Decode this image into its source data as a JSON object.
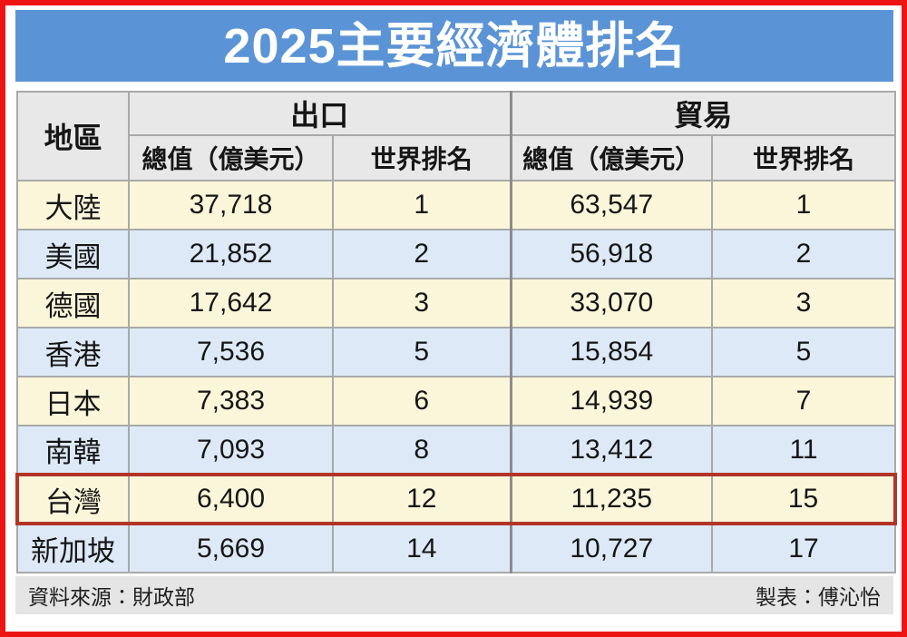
{
  "page": {
    "title": "2025主要經濟體排名"
  },
  "colors": {
    "frame_red": "#ee1414",
    "title_blue": "#5b94d6",
    "header_gray": "#e8e8e8",
    "row_cream": "#fbf6da",
    "row_blue": "#dde9f6",
    "grid_gray": "#a9a9a9",
    "divider_gray": "#8c8c8c",
    "highlight_red": "#b23527",
    "footer_gray": "#e5e5e5"
  },
  "table": {
    "region_header": "地區",
    "group_headers": [
      "出口",
      "貿易"
    ],
    "sub_headers": [
      "總值（億美元）",
      "世界排名"
    ],
    "rows": [
      {
        "region": "大陸",
        "export_value": "37,718",
        "export_rank": "1",
        "trade_value": "63,547",
        "trade_rank": "1"
      },
      {
        "region": "美國",
        "export_value": "21,852",
        "export_rank": "2",
        "trade_value": "56,918",
        "trade_rank": "2"
      },
      {
        "region": "德國",
        "export_value": "17,642",
        "export_rank": "3",
        "trade_value": "33,070",
        "trade_rank": "3"
      },
      {
        "region": "香港",
        "export_value": "7,536",
        "export_rank": "5",
        "trade_value": "15,854",
        "trade_rank": "5"
      },
      {
        "region": "日本",
        "export_value": "7,383",
        "export_rank": "6",
        "trade_value": "14,939",
        "trade_rank": "7"
      },
      {
        "region": "南韓",
        "export_value": "7,093",
        "export_rank": "8",
        "trade_value": "13,412",
        "trade_rank": "11"
      },
      {
        "region": "台灣",
        "export_value": "6,400",
        "export_rank": "12",
        "trade_value": "11,235",
        "trade_rank": "15"
      },
      {
        "region": "新加坡",
        "export_value": "5,669",
        "export_rank": "14",
        "trade_value": "10,727",
        "trade_rank": "17"
      }
    ],
    "highlighted_row": "台灣"
  },
  "footer": {
    "source": "資料來源：財政部",
    "credit": "製表：傅沁怡"
  },
  "chart_data": {
    "type": "table",
    "title": "2025主要經濟體排名",
    "columns": [
      "地區",
      "出口 總值（億美元）",
      "出口 世界排名",
      "貿易 總值（億美元）",
      "貿易 世界排名"
    ],
    "rows": [
      [
        "大陸",
        37718,
        1,
        63547,
        1
      ],
      [
        "美國",
        21852,
        2,
        56918,
        2
      ],
      [
        "德國",
        17642,
        3,
        33070,
        3
      ],
      [
        "香港",
        7536,
        5,
        15854,
        5
      ],
      [
        "日本",
        7383,
        6,
        14939,
        7
      ],
      [
        "南韓",
        7093,
        8,
        13412,
        11
      ],
      [
        "台灣",
        6400,
        12,
        11235,
        15
      ],
      [
        "新加坡",
        5669,
        14,
        10727,
        17
      ]
    ],
    "highlighted_row": "台灣",
    "source": "資料來源：財政部",
    "credit": "製表：傅沁怡"
  }
}
